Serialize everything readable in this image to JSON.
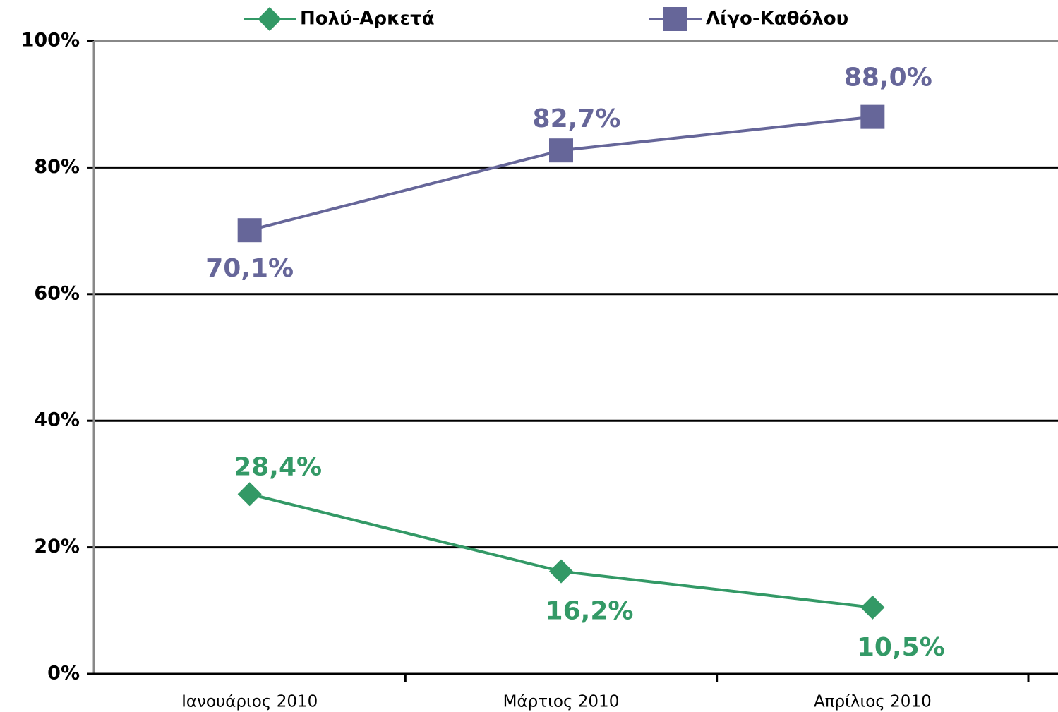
{
  "chart_data": {
    "type": "line",
    "categories": [
      "Ιανουάριος 2010",
      "Μάρτιος 2010",
      "Απρίλιος 2010"
    ],
    "series": [
      {
        "name": "Πολύ-Αρκετά",
        "color": "#339966",
        "marker": "diamond",
        "values": [
          28.4,
          16.2,
          10.5
        ],
        "value_labels": [
          "28,4%",
          "16,2%",
          "10,5%"
        ]
      },
      {
        "name": "Λίγο-Καθόλου",
        "color": "#666699",
        "marker": "square",
        "values": [
          70.1,
          82.7,
          88.0
        ],
        "value_labels": [
          "70,1%",
          "82,7%",
          "88,0%"
        ]
      }
    ],
    "ylim": [
      0,
      100
    ],
    "yticks": [
      {
        "value": 0,
        "label": "0%"
      },
      {
        "value": 20,
        "label": "20%"
      },
      {
        "value": 40,
        "label": "40%"
      },
      {
        "value": 60,
        "label": "60%"
      },
      {
        "value": 80,
        "label": "80%"
      },
      {
        "value": 100,
        "label": "100%"
      }
    ],
    "grid": true,
    "legend": "top"
  }
}
